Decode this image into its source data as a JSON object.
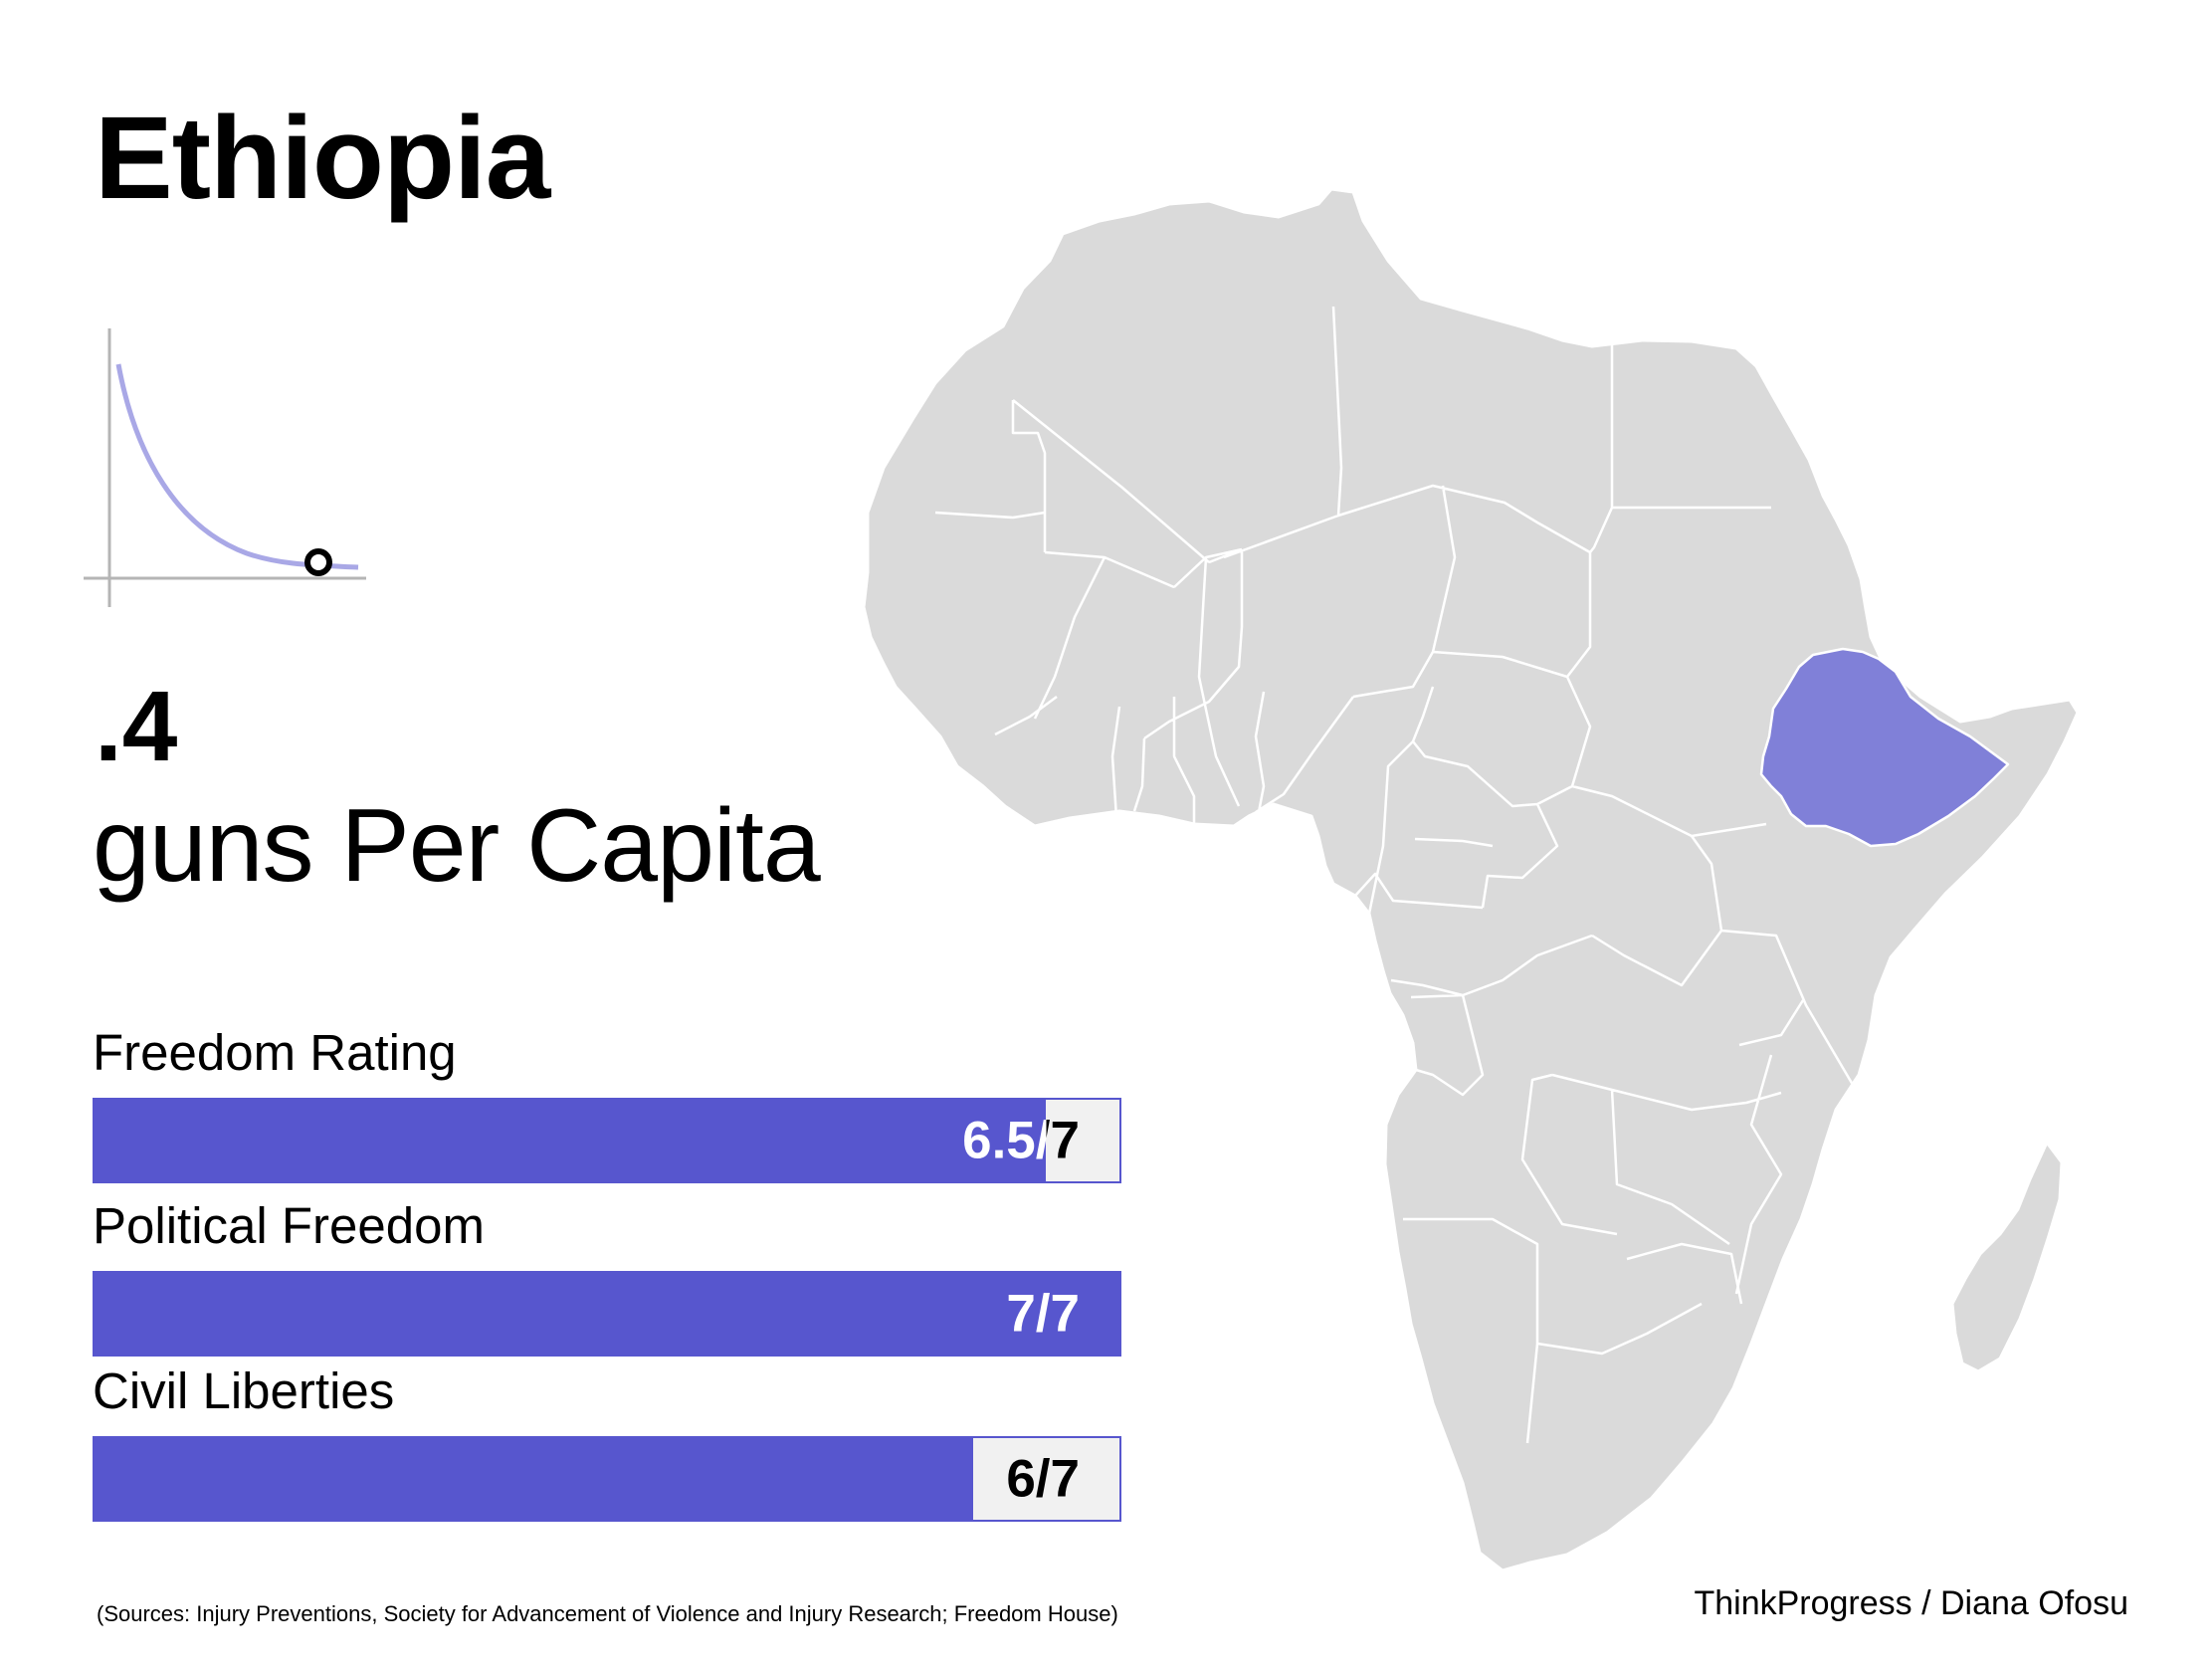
{
  "title": "Ethiopia",
  "guns_per_capita": {
    "value": ".4",
    "label": "guns Per Capita"
  },
  "ratings": [
    {
      "label": "Freedom Rating",
      "value": 6.5,
      "max": 7,
      "display": "6.5/7"
    },
    {
      "label": "Political Freedom",
      "value": 7,
      "max": 7,
      "display": "7/7"
    },
    {
      "label": "Civil Liberties",
      "value": 6,
      "max": 7,
      "display": "6/7"
    }
  ],
  "sources": "(Sources: Injury Preventions, Society for Advancement of Violence and Injury Research; Freedom House)",
  "credit": "ThinkProgress / Diana Ofosu",
  "colors": {
    "accent": "#5756ce",
    "highlight_country": "#8080d8",
    "map_land": "#dadada",
    "bar_background": "#f1f1f1",
    "curve": "#a9a8e6"
  },
  "map": {
    "region": "Africa",
    "highlighted_country": "Ethiopia"
  }
}
